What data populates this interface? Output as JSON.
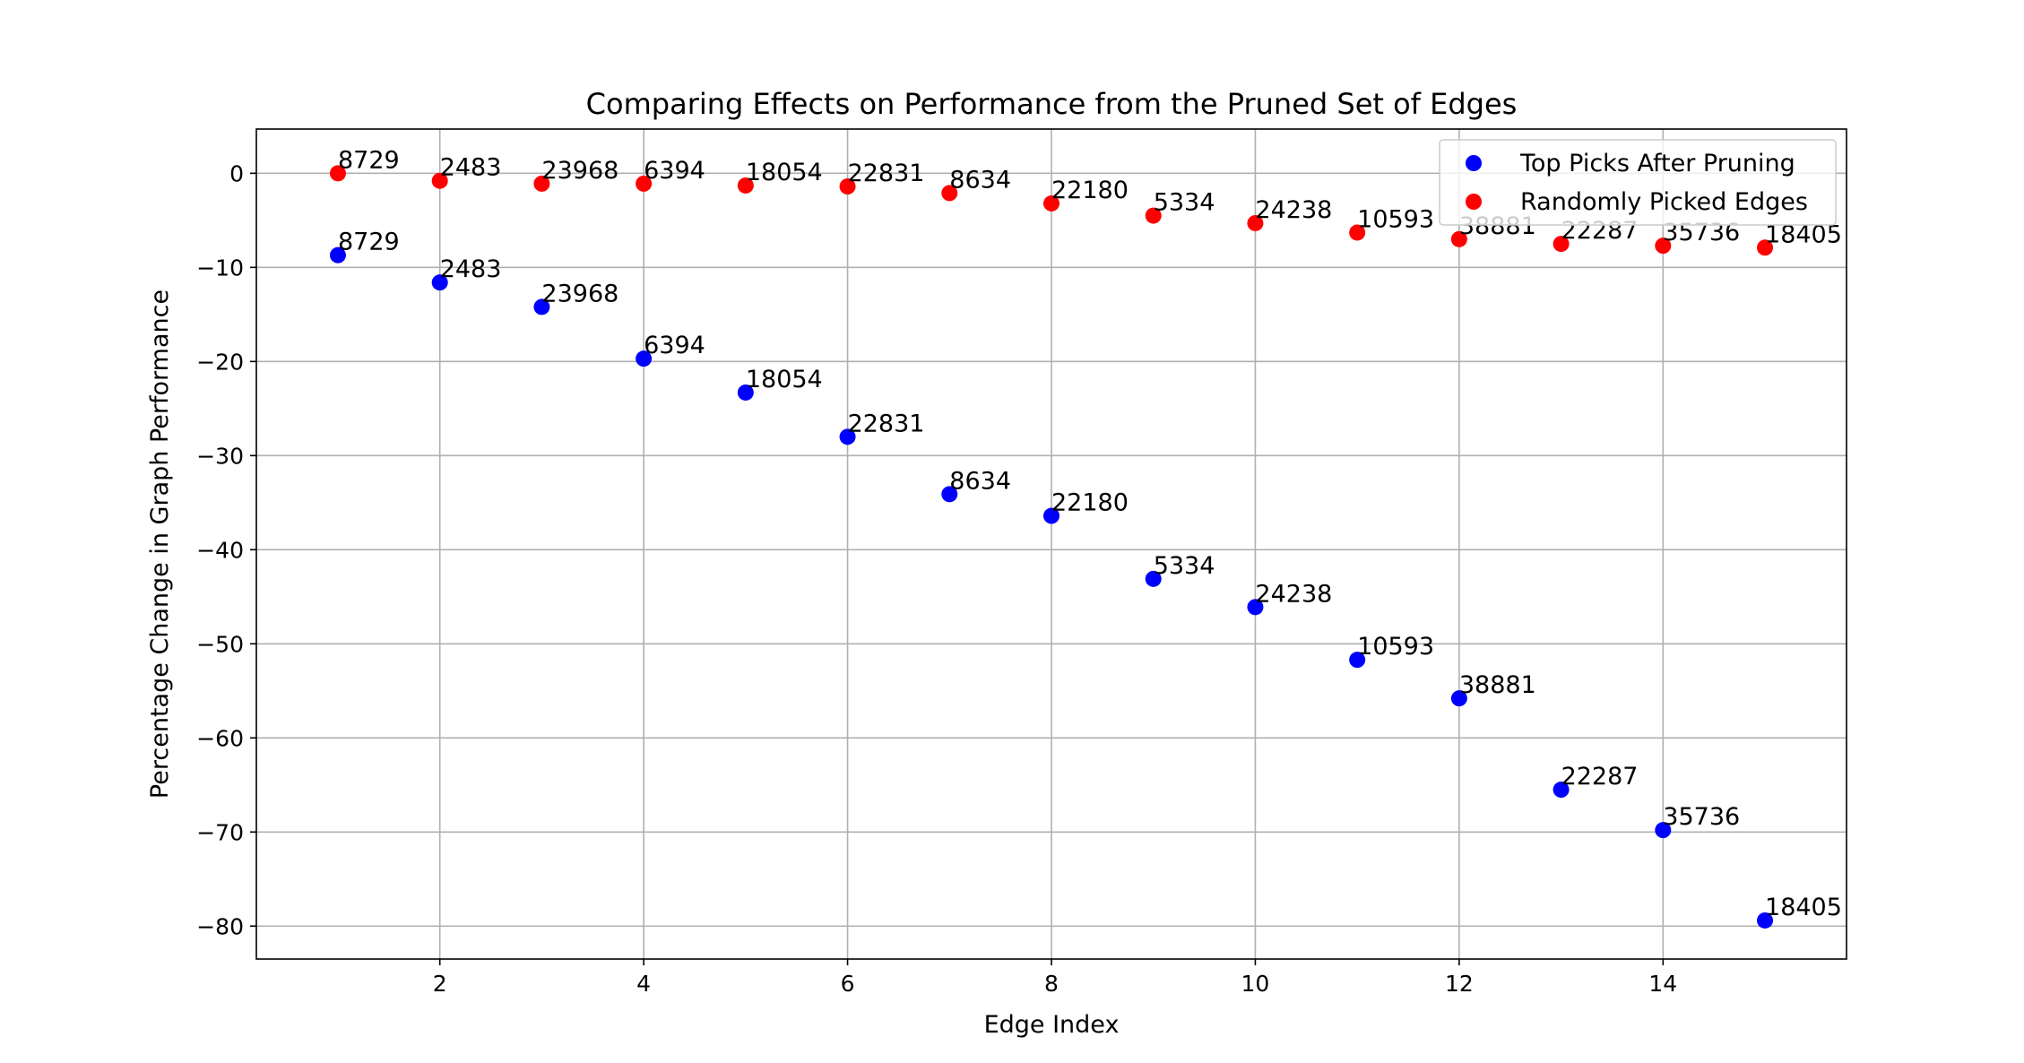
{
  "chart_data": {
    "type": "scatter",
    "title": "Comparing Effects on Performance from the Pruned Set of Edges",
    "xlabel": "Edge Index",
    "ylabel": "Percentage Change in Graph Performance",
    "xlim": [
      0.2,
      15.8
    ],
    "ylim": [
      -83.5,
      4.7
    ],
    "xticks": [
      2,
      4,
      6,
      8,
      10,
      12,
      14
    ],
    "yticks": [
      0,
      -10,
      -20,
      -30,
      -40,
      -50,
      -60,
      -70,
      -80
    ],
    "grid": true,
    "legend_position": "upper-right",
    "series": [
      {
        "name": "Top Picks After Pruning",
        "color": "#0000ff",
        "x": [
          1,
          2,
          3,
          4,
          5,
          6,
          7,
          8,
          9,
          10,
          11,
          12,
          13,
          14,
          15
        ],
        "y": [
          -8.7,
          -11.6,
          -14.2,
          -19.7,
          -23.3,
          -28.0,
          -34.1,
          -36.4,
          -43.1,
          -46.1,
          -51.7,
          -55.8,
          -65.5,
          -69.8,
          -79.4
        ],
        "labels": [
          "8729",
          "2483",
          "23968",
          "6394",
          "18054",
          "22831",
          "8634",
          "22180",
          "5334",
          "24238",
          "10593",
          "38881",
          "22287",
          "35736",
          "18405"
        ]
      },
      {
        "name": "Randomly Picked Edges",
        "color": "#ff0000",
        "x": [
          1,
          2,
          3,
          4,
          5,
          6,
          7,
          8,
          9,
          10,
          11,
          12,
          13,
          14,
          15
        ],
        "y": [
          0.0,
          -0.8,
          -1.1,
          -1.1,
          -1.3,
          -1.4,
          -2.1,
          -3.2,
          -4.5,
          -5.3,
          -6.3,
          -7.0,
          -7.5,
          -7.7,
          -7.9
        ],
        "labels": [
          "8729",
          "2483",
          "23968",
          "6394",
          "18054",
          "22831",
          "8634",
          "22180",
          "5334",
          "24238",
          "10593",
          "38881",
          "22287",
          "35736",
          "18405"
        ]
      }
    ]
  }
}
